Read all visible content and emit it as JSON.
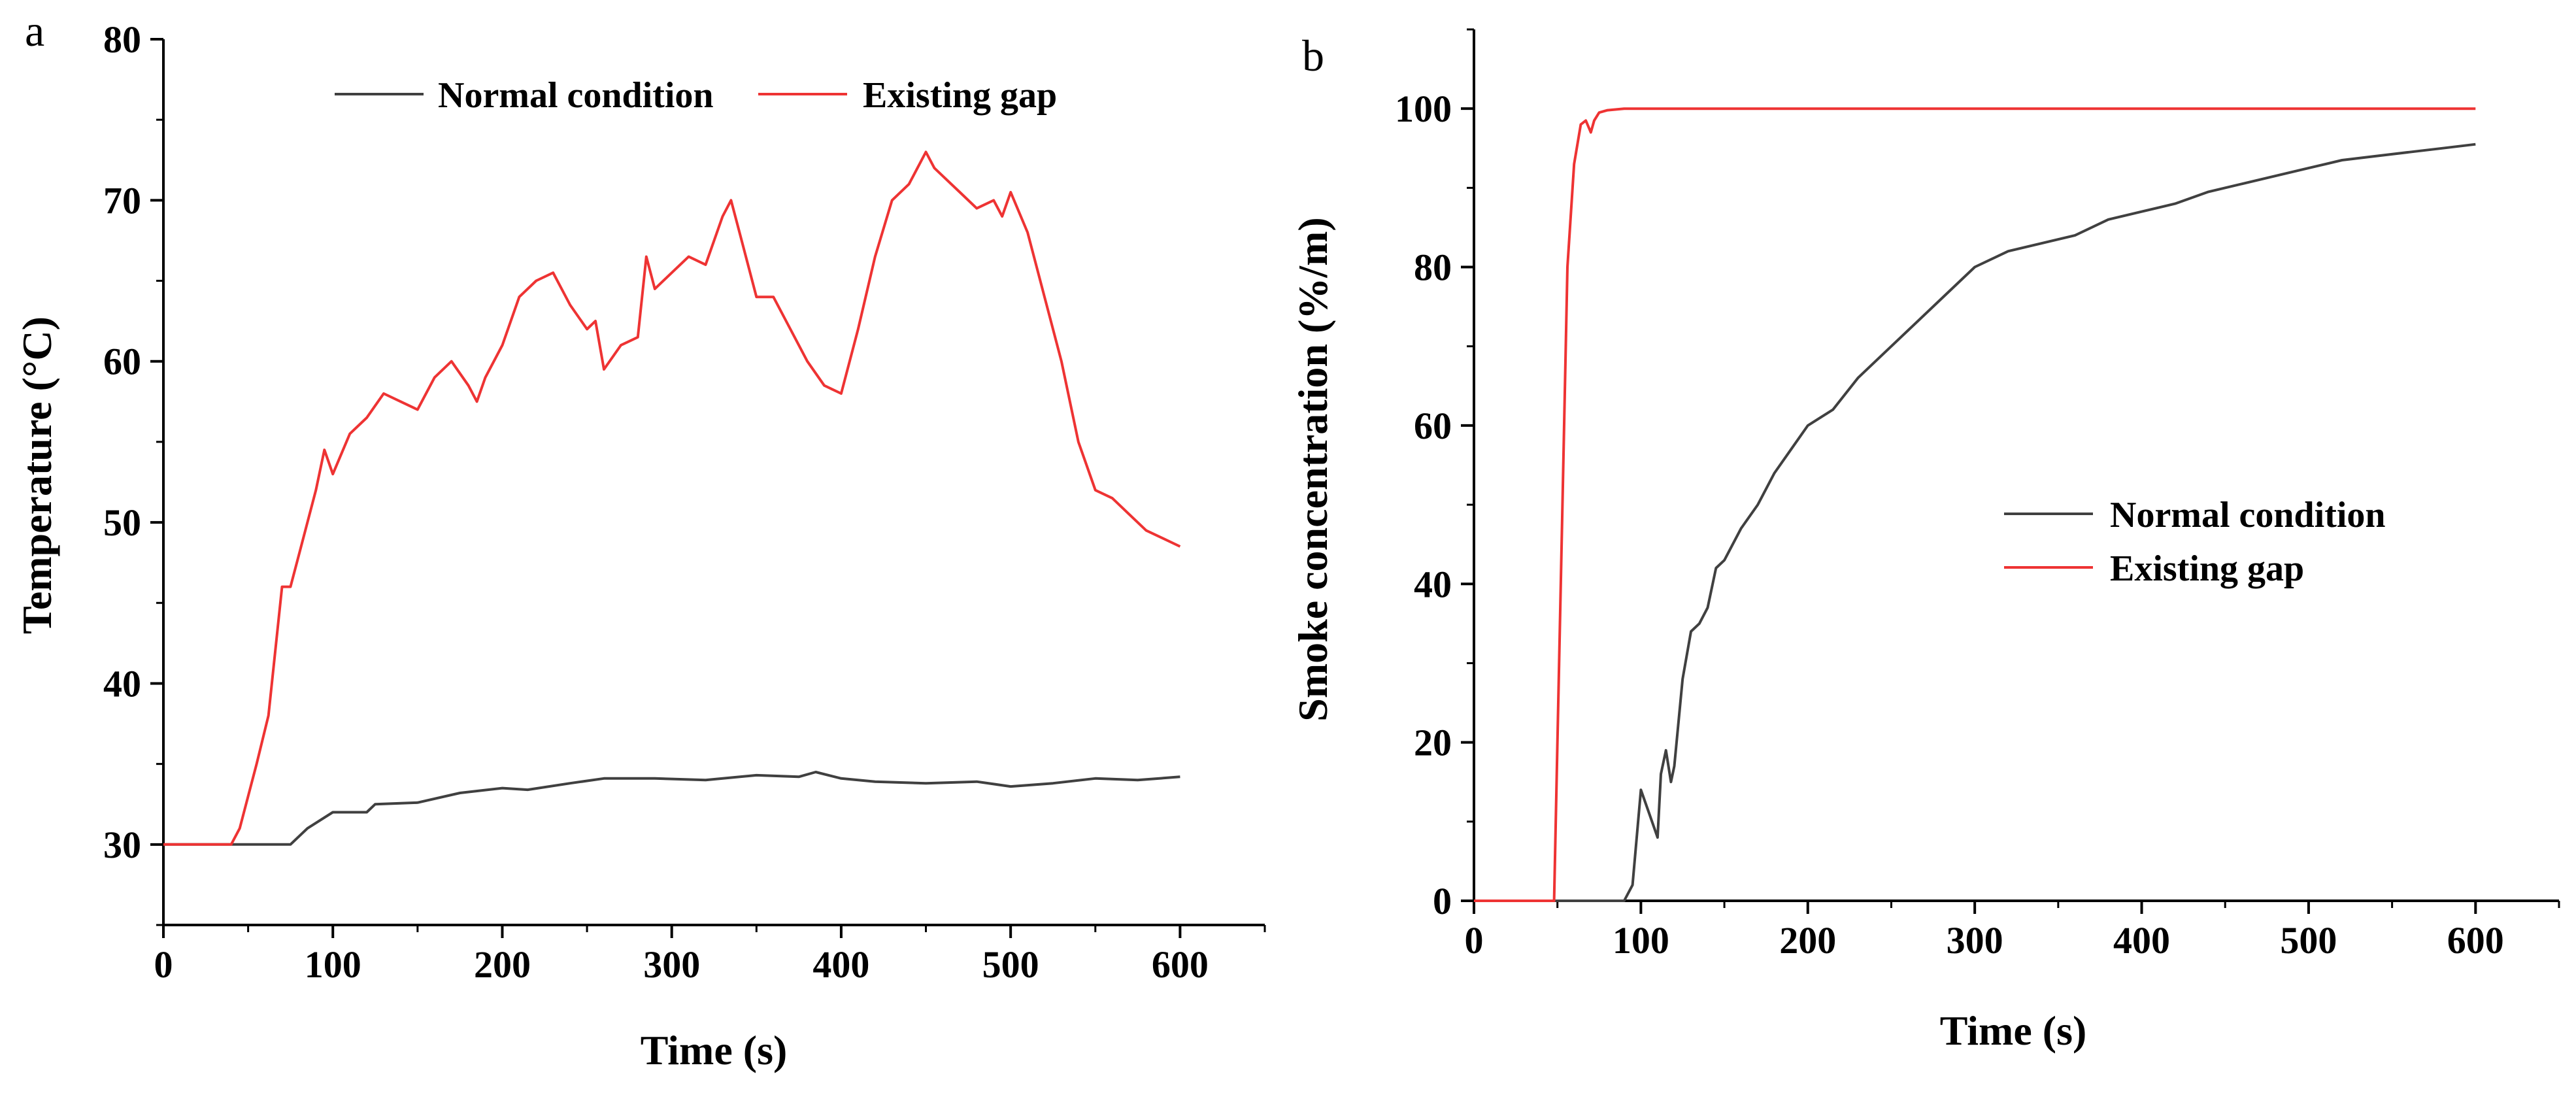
{
  "chart_data": [
    {
      "panel": "a",
      "type": "line",
      "xlabel": "Time (s)",
      "ylabel": "Temperature (°C)",
      "xlim": [
        0,
        650
      ],
      "ylim": [
        25,
        80
      ],
      "xticks": [
        0,
        100,
        200,
        300,
        400,
        500,
        600
      ],
      "yticks": [
        30,
        40,
        50,
        60,
        70,
        80
      ],
      "legend_position": "top-center",
      "series": [
        {
          "name": "Normal condition",
          "color": "#404040",
          "x": [
            0,
            40,
            75,
            85,
            100,
            120,
            125,
            150,
            175,
            200,
            215,
            240,
            260,
            290,
            320,
            350,
            375,
            385,
            400,
            420,
            450,
            480,
            500,
            525,
            550,
            575,
            600
          ],
          "y": [
            30,
            30,
            30,
            31,
            32,
            32,
            32.5,
            32.6,
            33.2,
            33.5,
            33.4,
            33.8,
            34.1,
            34.1,
            34.0,
            34.3,
            34.2,
            34.5,
            34.1,
            33.9,
            33.8,
            33.9,
            33.6,
            33.8,
            34.1,
            34.0,
            34.2
          ]
        },
        {
          "name": "Existing gap",
          "color": "#ee3333",
          "x": [
            0,
            40,
            45,
            55,
            62,
            70,
            75,
            80,
            90,
            95,
            100,
            110,
            120,
            130,
            140,
            150,
            160,
            170,
            180,
            185,
            190,
            200,
            210,
            220,
            230,
            240,
            250,
            255,
            260,
            270,
            280,
            285,
            290,
            300,
            310,
            320,
            330,
            335,
            340,
            350,
            360,
            370,
            380,
            390,
            400,
            410,
            420,
            430,
            440,
            450,
            455,
            460,
            470,
            480,
            490,
            495,
            500,
            510,
            520,
            530,
            540,
            550,
            560,
            570,
            580,
            590,
            600
          ],
          "y": [
            30,
            30,
            31,
            35,
            38,
            46,
            46,
            48,
            52,
            54.5,
            53,
            55.5,
            56.5,
            58,
            57.5,
            57,
            59,
            60,
            58.5,
            57.5,
            59,
            61,
            64,
            65,
            65.5,
            63.5,
            62,
            62.5,
            59.5,
            61,
            61.5,
            66.5,
            64.5,
            65.5,
            66.5,
            66,
            69,
            70,
            68,
            64,
            64,
            62,
            60,
            58.5,
            58,
            62,
            66.5,
            70,
            71,
            73,
            72,
            71.5,
            70.5,
            69.5,
            70,
            69,
            70.5,
            68,
            64,
            60,
            55,
            52,
            51.5,
            50.5,
            49.5,
            49,
            48.5
          ]
        }
      ]
    },
    {
      "panel": "b",
      "type": "line",
      "xlabel": "Time (s)",
      "ylabel": "Smoke concentration (%/m)",
      "xlim": [
        0,
        650
      ],
      "ylim": [
        0,
        110
      ],
      "xticks": [
        0,
        100,
        200,
        300,
        400,
        500,
        600
      ],
      "yticks": [
        0,
        20,
        40,
        60,
        80,
        100
      ],
      "legend_position": "middle-right",
      "series": [
        {
          "name": "Normal condition",
          "color": "#404040",
          "x": [
            0,
            90,
            95,
            100,
            105,
            110,
            112,
            115,
            118,
            120,
            125,
            130,
            135,
            140,
            145,
            150,
            160,
            170,
            180,
            190,
            200,
            215,
            230,
            245,
            260,
            280,
            300,
            320,
            340,
            360,
            380,
            400,
            420,
            440,
            460,
            480,
            500,
            520,
            540,
            560,
            580,
            600
          ],
          "y": [
            0,
            0,
            2,
            14,
            11,
            8,
            16,
            19,
            15,
            17,
            28,
            34,
            35,
            37,
            42,
            43,
            47,
            50,
            54,
            57,
            60,
            62,
            66,
            69,
            72,
            76,
            80,
            82,
            83,
            84,
            86,
            87,
            88,
            89.5,
            90.5,
            91.5,
            92.5,
            93.5,
            94,
            94.5,
            95,
            95.5
          ]
        },
        {
          "name": "Existing gap",
          "color": "#ee3333",
          "x": [
            0,
            48,
            50,
            53,
            56,
            60,
            64,
            67,
            70,
            72,
            75,
            80,
            90,
            100,
            150,
            600
          ],
          "y": [
            0,
            0,
            20,
            50,
            80,
            93,
            98,
            98.5,
            97,
            98.5,
            99.5,
            99.8,
            100,
            100,
            100,
            100
          ]
        }
      ]
    }
  ]
}
